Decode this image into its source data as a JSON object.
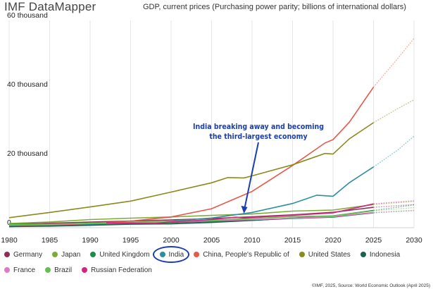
{
  "brand": "IMF DataMapper",
  "source": "©IMF, 2025, Source: World Economic Outlook (April 2025)",
  "chart_data": {
    "type": "line",
    "title": "GDP, current prices (Purchasing power parity; billions of international dollars)",
    "xlim": [
      1980,
      2030
    ],
    "ylim": [
      0,
      60000
    ],
    "x_ticks": [
      1980,
      1985,
      1990,
      1995,
      2000,
      2005,
      2010,
      2015,
      2020,
      2025,
      2030
    ],
    "y_ticks": [
      {
        "value": 0,
        "label": "0"
      },
      {
        "value": 20000,
        "label": "20 thousand"
      },
      {
        "value": 40000,
        "label": "40 thousand"
      },
      {
        "value": 60000,
        "label": "60 thousand"
      }
    ],
    "projection_start": 2025,
    "grid": "vertical",
    "annotation": {
      "lines": [
        "India breaking away and becoming",
        "the third-largest economy"
      ],
      "arrow_target": {
        "x": 2009,
        "y": 4100
      }
    },
    "highlighted_legend": "India",
    "series": [
      {
        "name": "Germany",
        "color": "#8f2d56",
        "points": [
          [
            1980,
            1000
          ],
          [
            1985,
            1280
          ],
          [
            1990,
            1620
          ],
          [
            1995,
            1920
          ],
          [
            2000,
            2250
          ],
          [
            2005,
            2650
          ],
          [
            2010,
            3150
          ],
          [
            2015,
            3720
          ],
          [
            2020,
            4450
          ],
          [
            2025,
            5900
          ],
          [
            2030,
            6700
          ]
        ]
      },
      {
        "name": "Japan",
        "color": "#7cab3a",
        "points": [
          [
            1980,
            1200
          ],
          [
            1985,
            1650
          ],
          [
            1990,
            2350
          ],
          [
            1995,
            2750
          ],
          [
            2000,
            3100
          ],
          [
            2005,
            3550
          ],
          [
            2010,
            3950
          ],
          [
            2015,
            4800
          ],
          [
            2020,
            5100
          ],
          [
            2025,
            6700
          ],
          [
            2030,
            7600
          ]
        ]
      },
      {
        "name": "United Kingdom",
        "color": "#1f8a4c",
        "points": [
          [
            1980,
            550
          ],
          [
            1985,
            720
          ],
          [
            1990,
            950
          ],
          [
            1995,
            1150
          ],
          [
            2000,
            1450
          ],
          [
            2005,
            1800
          ],
          [
            2010,
            2150
          ],
          [
            2015,
            2650
          ],
          [
            2020,
            3050
          ],
          [
            2025,
            4300
          ],
          [
            2030,
            4950
          ]
        ]
      },
      {
        "name": "India",
        "color": "#2b8f9e",
        "points": [
          [
            1980,
            400
          ],
          [
            1985,
            600
          ],
          [
            1990,
            900
          ],
          [
            1995,
            1350
          ],
          [
            2000,
            1900
          ],
          [
            2005,
            2800
          ],
          [
            2010,
            4400
          ],
          [
            2015,
            7000
          ],
          [
            2018,
            9400
          ],
          [
            2020,
            9100
          ],
          [
            2022,
            13000
          ],
          [
            2025,
            17600
          ],
          [
            2028,
            22500
          ],
          [
            2030,
            26500
          ]
        ]
      },
      {
        "name": "China, People's Republic of",
        "color": "#e8584a",
        "points": [
          [
            1980,
            300
          ],
          [
            1985,
            700
          ],
          [
            1990,
            1200
          ],
          [
            1995,
            1900
          ],
          [
            2000,
            3100
          ],
          [
            2005,
            5500
          ],
          [
            2008,
            8500
          ],
          [
            2010,
            10500
          ],
          [
            2015,
            18000
          ],
          [
            2019,
            24500
          ],
          [
            2020,
            25500
          ],
          [
            2022,
            30500
          ],
          [
            2025,
            40700
          ],
          [
            2028,
            49000
          ],
          [
            2030,
            54800
          ]
        ]
      },
      {
        "name": "United States",
        "color": "#8a8a1e",
        "points": [
          [
            1980,
            2900
          ],
          [
            1985,
            4400
          ],
          [
            1990,
            6000
          ],
          [
            1995,
            7700
          ],
          [
            2000,
            10300
          ],
          [
            2005,
            13000
          ],
          [
            2007,
            14500
          ],
          [
            2009,
            14400
          ],
          [
            2010,
            15000
          ],
          [
            2015,
            18200
          ],
          [
            2019,
            21500
          ],
          [
            2020,
            21300
          ],
          [
            2022,
            25700
          ],
          [
            2025,
            30400
          ],
          [
            2028,
            34500
          ],
          [
            2030,
            37000
          ]
        ]
      },
      {
        "name": "Indonesia",
        "color": "#1e6150",
        "points": [
          [
            1980,
            300
          ],
          [
            1985,
            450
          ],
          [
            1990,
            700
          ],
          [
            1995,
            1000
          ],
          [
            2000,
            1100
          ],
          [
            2005,
            1500
          ],
          [
            2010,
            2100
          ],
          [
            2015,
            2800
          ],
          [
            2020,
            3400
          ],
          [
            2025,
            5000
          ],
          [
            2030,
            6600
          ]
        ]
      },
      {
        "name": "France",
        "color": "#e07bc3",
        "points": [
          [
            1980,
            750
          ],
          [
            1985,
            950
          ],
          [
            1990,
            1250
          ],
          [
            1995,
            1450
          ],
          [
            2000,
            1700
          ],
          [
            2005,
            2000
          ],
          [
            2010,
            2350
          ],
          [
            2015,
            2750
          ],
          [
            2020,
            3200
          ],
          [
            2025,
            4400
          ],
          [
            2030,
            5000
          ]
        ]
      },
      {
        "name": "Brazil",
        "color": "#63c04f",
        "points": [
          [
            1980,
            850
          ],
          [
            1985,
            1050
          ],
          [
            1990,
            1300
          ],
          [
            1995,
            1550
          ],
          [
            2000,
            1850
          ],
          [
            2005,
            2150
          ],
          [
            2010,
            2700
          ],
          [
            2015,
            3200
          ],
          [
            2020,
            3400
          ],
          [
            2025,
            4900
          ],
          [
            2030,
            5800
          ]
        ]
      },
      {
        "name": "Russian Federation",
        "color": "#d5247e",
        "points": [
          [
            1992,
            1400
          ],
          [
            1995,
            1350
          ],
          [
            1998,
            1250
          ],
          [
            2000,
            1650
          ],
          [
            2005,
            2350
          ],
          [
            2008,
            3050
          ],
          [
            2009,
            2800
          ],
          [
            2010,
            3000
          ],
          [
            2015,
            3600
          ],
          [
            2020,
            4300
          ],
          [
            2022,
            5300
          ],
          [
            2025,
            6900
          ],
          [
            2030,
            7800
          ]
        ]
      }
    ]
  },
  "legend": {
    "rows": [
      [
        "Germany",
        "Japan",
        "United Kingdom",
        "India",
        "China, People's Republic of",
        "United States",
        "Indonesia"
      ],
      [
        "France",
        "Brazil",
        "Russian Federation"
      ]
    ]
  }
}
